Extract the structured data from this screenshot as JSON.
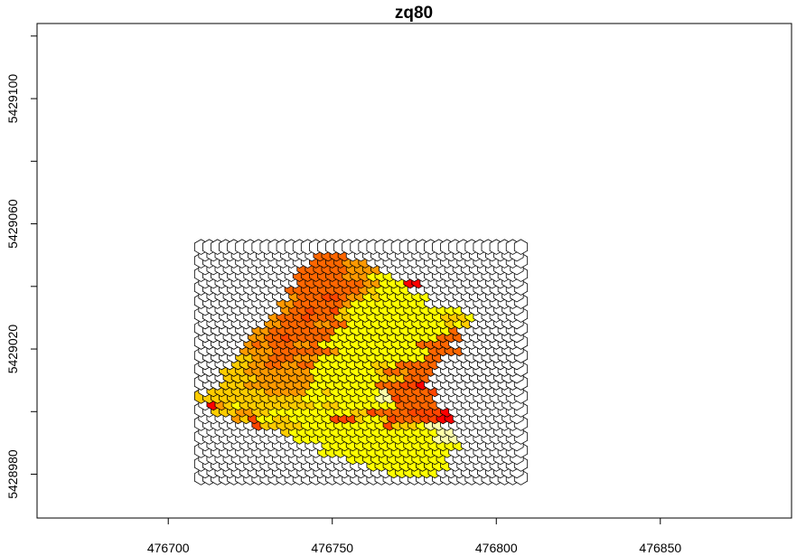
{
  "chart_data": {
    "type": "heatmap",
    "subtype": "hexagonal grid map",
    "title": "zq80",
    "xlabel": "",
    "ylabel": "",
    "xlim": [
      476660,
      476890
    ],
    "ylim": [
      5428966,
      5429124
    ],
    "x_ticks": [
      {
        "value": 476700,
        "label": "476700"
      },
      {
        "value": 476750,
        "label": "476750"
      },
      {
        "value": 476800,
        "label": "476800"
      },
      {
        "value": 476850,
        "label": "476850"
      }
    ],
    "y_ticks": [
      {
        "value": 5428980,
        "label": "5428980"
      },
      {
        "value": 5429020,
        "label": "5429020"
      },
      {
        "value": 5429060,
        "label": "5429060"
      },
      {
        "value": 5429100,
        "label": "5429100"
      }
    ],
    "y_minor_ticks": [
      5429000,
      5429040,
      5429080,
      5429120
    ],
    "grid": false,
    "legend": "none",
    "hex_grid": {
      "x_start": 476710,
      "x_step": 2.5,
      "y_start": 5428979,
      "y_step": 2.165,
      "rows": 35,
      "cols": 40,
      "empty_fill": "#ffffff",
      "stroke": "#000000"
    },
    "palette": {
      "0": "#ff0000",
      "1": "#ff4500",
      "2": "#ff6600",
      "3": "#ff9900",
      "4": "#ffcc00",
      "5": "#ffff00",
      "6": "#ffffaa"
    },
    "rows_from_bottom": [
      "..................................................",
      ".......................555555.......",
      ".....................5555555555.....",
      "..................555555555555......",
      "...............5555555555555555.....",
      "...............55555555555555555....",
      "............55555555555555555666....",
      "..........455555555555555555566.....",
      ".......14444455555555551444566......",
      "....341554455555111455412221100.....",
      "..44433445555555555441222211110.....",
      ".0345444444444544555555522222.......",
      "44444444444445555555556612222........",
      ".4444444333335545555556222221........",
      "...4443333333355555555222110.........",
      "...4444333333355555555444222.........",
      "...44433333333555555554223222........",
      "....4433223322555555544522222........",
      ".....4433222333555555555555522.......",
      ".....333322222223555555555552222......",
      "......3232223325555555555552222......",
      "......33221222225555555555555222.....",
      ".......3322222222555555555555552.....",
      "........3322223322555555555555454....",
      ".........3222122244555555555554445...",
      "..........3221221455555555555555.....",
      "..........332222223555555555.........",
      "...........32221123354555555........",
      "...........222222222345555..........",
      "............222222223355500.........",
      "............222222333555............",
      "............2222223333..............",
      "..............2222333...............",
      "..............2222..................",
      "....................................."
    ]
  }
}
